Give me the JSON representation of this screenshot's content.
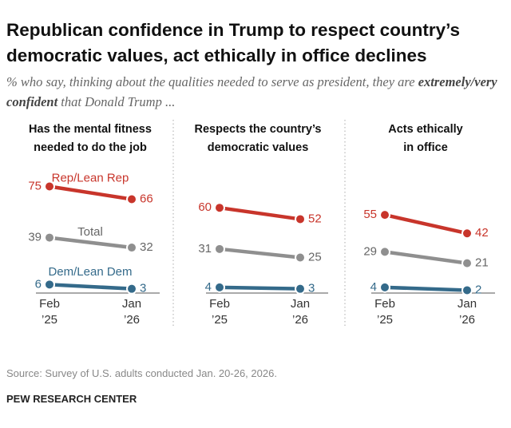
{
  "title": [
    "Republican confidence in Trump to respect country’s",
    "democratic values, act ethically in office declines"
  ],
  "subtitle": [
    "% who say, thinking about the qualities needed to serve as president, they are",
    "extremely/very confident",
    "that Donald Trump ..."
  ],
  "source": "Source: Survey of U.S. adults conducted Jan. 20-26, 2026.",
  "org": "PEW RESEARCH CENTER",
  "chart_data": [
    {
      "type": "line",
      "title": [
        "Has the mental fitness",
        "needed to do the job"
      ],
      "categories": [
        "Feb\n’25",
        "Jan\n’26"
      ],
      "series": [
        {
          "name": "Rep/Lean Rep",
          "color": "#c8352b",
          "values": [
            75,
            66
          ]
        },
        {
          "name": "Total",
          "color": "#8f8f8f",
          "values": [
            39,
            32
          ]
        },
        {
          "name": "Dem/Lean Dem",
          "color": "#346a8a",
          "values": [
            6,
            3
          ]
        }
      ]
    },
    {
      "type": "line",
      "title": [
        "Respects the country’s",
        "democratic values"
      ],
      "categories": [
        "Feb\n’25",
        "Jan\n’26"
      ],
      "series": [
        {
          "color": "#c8352b",
          "values": [
            60,
            52
          ]
        },
        {
          "color": "#8f8f8f",
          "values": [
            31,
            25
          ]
        },
        {
          "color": "#346a8a",
          "values": [
            4,
            3
          ]
        }
      ]
    },
    {
      "type": "line",
      "title": [
        "Acts ethically",
        "in office"
      ],
      "categories": [
        "Feb\n’25",
        "Jan\n’26"
      ],
      "series": [
        {
          "color": "#c8352b",
          "values": [
            55,
            42
          ]
        },
        {
          "color": "#8f8f8f",
          "values": [
            29,
            21
          ]
        },
        {
          "color": "#346a8a",
          "values": [
            4,
            2
          ]
        }
      ]
    }
  ]
}
